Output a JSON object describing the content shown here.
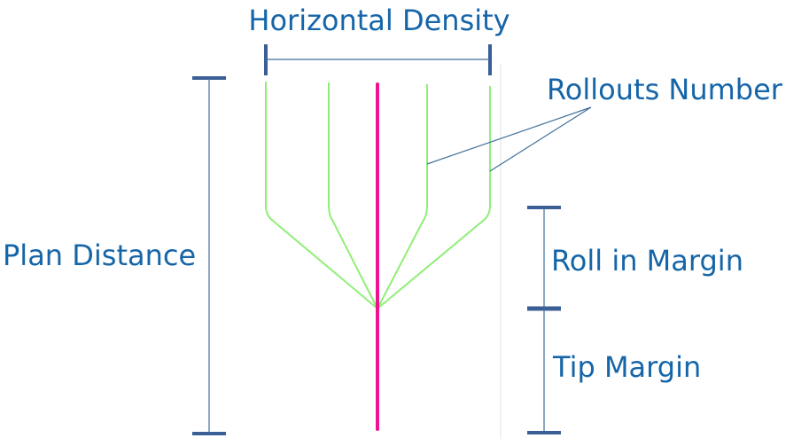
{
  "labels": {
    "horizontal_density": "Horizontal Density",
    "rollouts_number": "Rollouts Number",
    "plan_distance": "Plan Distance",
    "roll_in_margin": "Roll in Margin",
    "tip_margin": "Tip Margin"
  },
  "colors": {
    "label_text": "#1565a8",
    "dimension_bar": "#3a5f96",
    "dimension_line": "#3f6f98",
    "rollout": "#90ee78",
    "center_path": "#ee1290",
    "divider": "#e6e6e6"
  }
}
